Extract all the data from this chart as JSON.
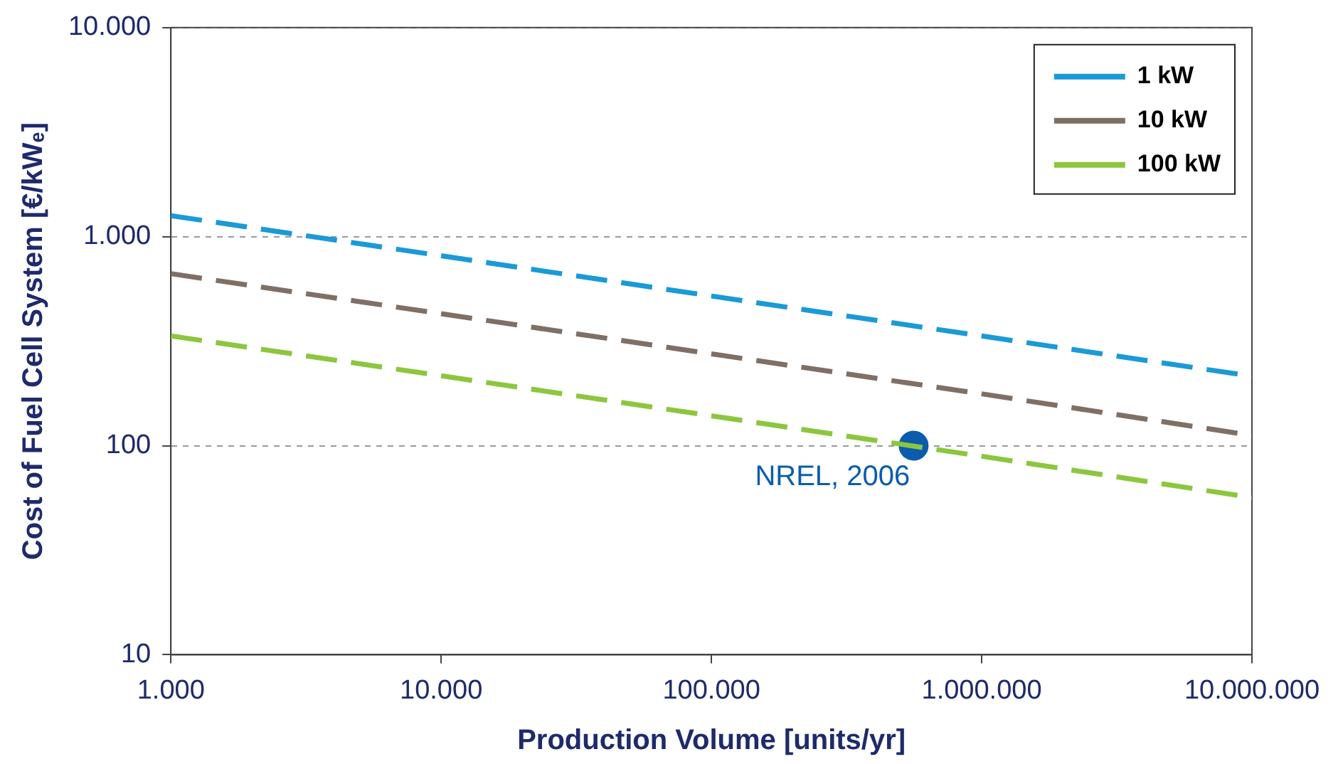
{
  "chart_data": {
    "type": "line",
    "xlabel": "Production Volume [units/yr]",
    "ylabel": "Cost of Fuel Cell System [€/kWₑ]",
    "x": [
      1000,
      10000,
      100000,
      1000000,
      10000000
    ],
    "series": [
      {
        "name": "1 kW",
        "color": "#1a9ad6",
        "values": [
          1260,
          810,
          520,
          335,
          215
        ]
      },
      {
        "name": "10 kW",
        "color": "#7f6f65",
        "values": [
          665,
          428,
          275,
          177,
          112
        ]
      },
      {
        "name": "100 kW",
        "color": "#8cc63f",
        "values": [
          335,
          216,
          139,
          89,
          56.5
        ]
      },
      {
        "type": "scatter",
        "color": "#0b5cad",
        "x": [
          560000
        ],
        "values": [
          100
        ],
        "marker": "circle"
      }
    ],
    "annotations": [
      {
        "text": "NREL, 2006",
        "x": 560000,
        "y": 100
      }
    ],
    "log": "xy",
    "xlim": [
      1000,
      10000000
    ],
    "ylim": [
      10,
      10000
    ],
    "xticks": [
      {
        "value": 1000,
        "label": "1.000"
      },
      {
        "value": 10000,
        "label": "10.000"
      },
      {
        "value": 100000,
        "label": "100.000"
      },
      {
        "value": 1000000,
        "label": "1.000.000"
      },
      {
        "value": 10000000,
        "label": "10.000.000"
      }
    ],
    "yticks": [
      10,
      100,
      {
        "value": 1000,
        "label": "1.000"
      },
      {
        "value": 10000,
        "label": "10.000"
      }
    ],
    "grid": "y",
    "legend": "top right",
    "line_style": "dashed",
    "marker": "none"
  }
}
